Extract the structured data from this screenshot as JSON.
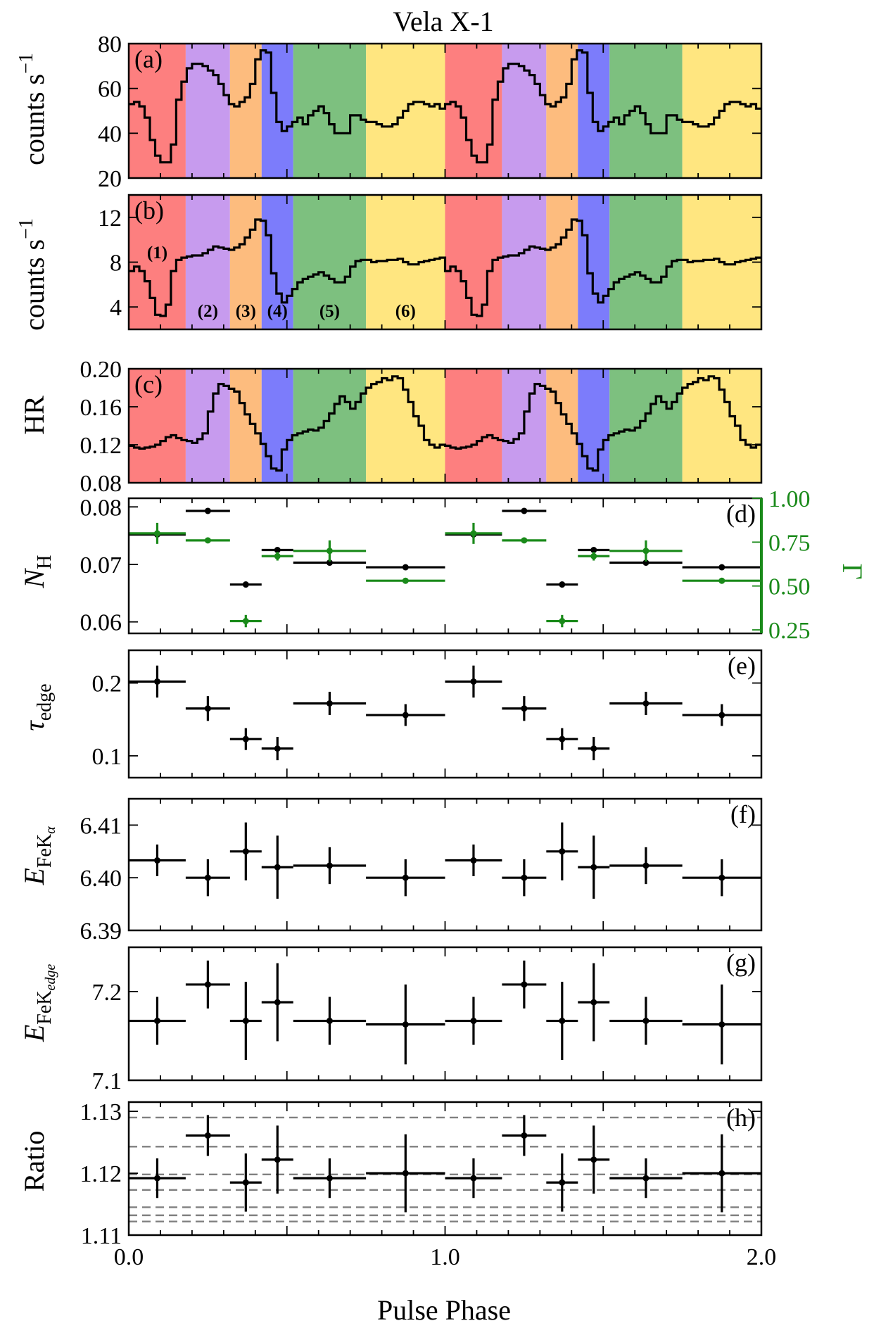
{
  "title": "Vela X-1",
  "xlabel": "Pulse Phase",
  "x_ticks": [
    "0.0",
    "1.0",
    "2.0"
  ],
  "xlim": [
    0,
    2
  ],
  "colors": {
    "regions": [
      "#fd7f7f",
      "#c79bee",
      "#fdbc7e",
      "#7c7cfb",
      "#7dc07f",
      "#ffe680"
    ],
    "green": "#1a8a1a",
    "black": "#000000",
    "gray": "#808080"
  },
  "region_edges": [
    0,
    0.18,
    0.32,
    0.42,
    0.52,
    0.75,
    1.0
  ],
  "region_labels": [
    "(1)",
    "(2)",
    "(3)",
    "(4)",
    "(5)",
    "(6)"
  ],
  "chart_data": [
    {
      "id": "a",
      "type": "line",
      "label": "(a)",
      "ylabel": "counts s⁻¹",
      "ylim": [
        20,
        80
      ],
      "yticks": [
        20,
        40,
        60,
        80
      ],
      "ytick_labels": [
        "20",
        "40",
        "60",
        "80"
      ],
      "step_values": [
        53,
        54,
        52,
        47,
        37,
        30,
        27,
        27,
        35,
        55,
        63,
        69,
        71,
        71,
        70,
        68,
        66,
        62,
        57,
        53,
        52,
        54,
        56,
        62,
        73,
        77,
        76,
        58,
        45,
        41,
        43,
        45,
        47,
        44,
        48,
        50,
        52,
        49,
        44,
        40,
        40,
        40,
        48,
        48,
        46,
        45,
        45,
        44,
        43,
        43,
        44,
        47,
        50,
        53,
        54,
        54,
        53,
        52,
        53,
        51
      ]
    },
    {
      "id": "b",
      "type": "line",
      "label": "(b)",
      "ylabel": "counts s⁻¹",
      "ylim": [
        2,
        14
      ],
      "yticks": [
        4,
        8,
        12
      ],
      "ytick_labels": [
        "4",
        "8",
        "12"
      ],
      "step_values": [
        7.2,
        7.6,
        7.2,
        6.3,
        4.8,
        3.3,
        3.2,
        4.2,
        7.2,
        8.2,
        8.4,
        8.5,
        8.6,
        8.6,
        8.8,
        9.1,
        9.4,
        9.3,
        9.2,
        9.1,
        9.3,
        9.6,
        10.2,
        10.9,
        11.8,
        11.7,
        10.4,
        7.0,
        5.2,
        4.4,
        5.0,
        5.6,
        6.2,
        6.5,
        6.7,
        6.9,
        7.1,
        6.8,
        6.5,
        6.2,
        6.2,
        6.7,
        7.6,
        8.1,
        8.2,
        8.2,
        8.0,
        8.1,
        8.1,
        8.2,
        8.2,
        8.3,
        8.0,
        7.8,
        7.8,
        8.0,
        8.1,
        8.2,
        8.3,
        8.4
      ]
    },
    {
      "id": "c",
      "type": "line",
      "label": "(c)",
      "ylabel": "HR",
      "ylim": [
        0.08,
        0.2
      ],
      "yticks": [
        0.08,
        0.12,
        0.16,
        0.2
      ],
      "ytick_labels": [
        "0.08",
        "0.12",
        "0.16",
        "0.20"
      ],
      "step_values": [
        0.119,
        0.117,
        0.116,
        0.117,
        0.118,
        0.12,
        0.124,
        0.128,
        0.13,
        0.127,
        0.125,
        0.124,
        0.122,
        0.126,
        0.132,
        0.155,
        0.174,
        0.184,
        0.182,
        0.179,
        0.176,
        0.164,
        0.152,
        0.142,
        0.132,
        0.121,
        0.108,
        0.095,
        0.093,
        0.115,
        0.125,
        0.13,
        0.132,
        0.134,
        0.136,
        0.135,
        0.138,
        0.145,
        0.153,
        0.163,
        0.171,
        0.165,
        0.158,
        0.165,
        0.174,
        0.18,
        0.184,
        0.186,
        0.19,
        0.188,
        0.192,
        0.19,
        0.178,
        0.165,
        0.15,
        0.14,
        0.125,
        0.12,
        0.117,
        0.12
      ]
    },
    {
      "id": "d",
      "type": "scatter",
      "label": "(d)",
      "ylabel": "N_H",
      "y2label": "Γ",
      "ylim": [
        0.058,
        0.0815
      ],
      "yticks": [
        0.06,
        0.07,
        0.08
      ],
      "ytick_labels": [
        "0.06",
        "0.07",
        "0.08"
      ],
      "y2lim": [
        0.23,
        1.0
      ],
      "y2ticks": [
        0.25,
        0.5,
        0.75,
        1.0
      ],
      "y2tick_labels": [
        "0.25",
        "0.50",
        "0.75",
        "1.00"
      ],
      "series": [
        {
          "name": "N_H",
          "axis": "left",
          "color": "#000000",
          "points": [
            {
              "x": 0.09,
              "xerr": 0.09,
              "y": 0.0752,
              "yerr": 0.0006
            },
            {
              "x": 0.25,
              "xerr": 0.07,
              "y": 0.0793,
              "yerr": 0.0005
            },
            {
              "x": 0.37,
              "xerr": 0.05,
              "y": 0.0665,
              "yerr": 0.0005
            },
            {
              "x": 0.47,
              "xerr": 0.05,
              "y": 0.0725,
              "yerr": 0.0004
            },
            {
              "x": 0.635,
              "xerr": 0.115,
              "y": 0.0703,
              "yerr": 0.0004
            },
            {
              "x": 0.875,
              "xerr": 0.125,
              "y": 0.0695,
              "yerr": 0.0004
            }
          ]
        },
        {
          "name": "Γ",
          "axis": "right",
          "color": "#1a8a1a",
          "points": [
            {
              "x": 0.09,
              "xerr": 0.09,
              "y": 0.8,
              "yerr": 0.06
            },
            {
              "x": 0.25,
              "xerr": 0.07,
              "y": 0.76,
              "yerr": 0.015
            },
            {
              "x": 0.37,
              "xerr": 0.05,
              "y": 0.3,
              "yerr": 0.035
            },
            {
              "x": 0.47,
              "xerr": 0.05,
              "y": 0.67,
              "yerr": 0.025
            },
            {
              "x": 0.635,
              "xerr": 0.115,
              "y": 0.7,
              "yerr": 0.06
            },
            {
              "x": 0.875,
              "xerr": 0.125,
              "y": 0.53,
              "yerr": 0.012
            }
          ]
        }
      ]
    },
    {
      "id": "e",
      "type": "scatter",
      "label": "(e)",
      "ylabel": "τ_edge",
      "ylim": [
        0.07,
        0.245
      ],
      "yticks": [
        0.1,
        0.2
      ],
      "ytick_labels": [
        "0.1",
        "0.2"
      ],
      "series": [
        {
          "name": "τ_edge",
          "axis": "left",
          "color": "#000000",
          "points": [
            {
              "x": 0.09,
              "xerr": 0.09,
              "y": 0.202,
              "yerr": 0.022
            },
            {
              "x": 0.25,
              "xerr": 0.07,
              "y": 0.165,
              "yerr": 0.017
            },
            {
              "x": 0.37,
              "xerr": 0.05,
              "y": 0.123,
              "yerr": 0.015
            },
            {
              "x": 0.47,
              "xerr": 0.05,
              "y": 0.11,
              "yerr": 0.016
            },
            {
              "x": 0.635,
              "xerr": 0.115,
              "y": 0.172,
              "yerr": 0.016
            },
            {
              "x": 0.875,
              "xerr": 0.125,
              "y": 0.156,
              "yerr": 0.015
            }
          ]
        }
      ]
    },
    {
      "id": "f",
      "type": "scatter",
      "label": "(f)",
      "ylabel": "E_FeKα",
      "ylim": [
        6.39,
        6.415
      ],
      "yticks": [
        6.39,
        6.4,
        6.41
      ],
      "ytick_labels": [
        "6.39",
        "6.40",
        "6.41"
      ],
      "series": [
        {
          "name": "E_FeKα",
          "axis": "left",
          "color": "#000000",
          "points": [
            {
              "x": 0.09,
              "xerr": 0.09,
              "y": 6.4033,
              "yerr": 0.003
            },
            {
              "x": 0.25,
              "xerr": 0.07,
              "y": 6.4,
              "yerr": 0.0035
            },
            {
              "x": 0.37,
              "xerr": 0.05,
              "y": 6.405,
              "yerr": 0.0055
            },
            {
              "x": 0.47,
              "xerr": 0.05,
              "y": 6.402,
              "yerr": 0.006
            },
            {
              "x": 0.635,
              "xerr": 0.115,
              "y": 6.4023,
              "yerr": 0.0035
            },
            {
              "x": 0.875,
              "xerr": 0.125,
              "y": 6.4,
              "yerr": 0.0035
            }
          ]
        }
      ]
    },
    {
      "id": "g",
      "type": "scatter",
      "label": "(g)",
      "ylabel": "E_FeKedge",
      "ylim": [
        7.1,
        7.25
      ],
      "yticks": [
        7.1,
        7.2
      ],
      "ytick_labels": [
        "7.1",
        "7.2"
      ],
      "series": [
        {
          "name": "E_FeKedge",
          "axis": "left",
          "color": "#000000",
          "points": [
            {
              "x": 0.09,
              "xerr": 0.09,
              "y": 7.167,
              "yerr": 0.027
            },
            {
              "x": 0.25,
              "xerr": 0.07,
              "y": 7.208,
              "yerr": 0.027
            },
            {
              "x": 0.37,
              "xerr": 0.05,
              "y": 7.167,
              "yerr": 0.044
            },
            {
              "x": 0.47,
              "xerr": 0.05,
              "y": 7.188,
              "yerr": 0.044
            },
            {
              "x": 0.635,
              "xerr": 0.115,
              "y": 7.167,
              "yerr": 0.027
            },
            {
              "x": 0.875,
              "xerr": 0.125,
              "y": 7.163,
              "yerr": 0.045
            }
          ]
        }
      ]
    },
    {
      "id": "h",
      "type": "scatter",
      "label": "(h)",
      "ylabel": "Ratio",
      "ylim": [
        1.11,
        1.1315
      ],
      "yticks": [
        1.11,
        1.12,
        1.13
      ],
      "ytick_labels": [
        "1.11",
        "1.12",
        "1.13"
      ],
      "hlines": [
        1.129,
        1.1243,
        1.1198,
        1.1173,
        1.1145,
        1.1132,
        1.1122
      ],
      "series": [
        {
          "name": "Ratio",
          "axis": "left",
          "color": "#000000",
          "points": [
            {
              "x": 0.09,
              "xerr": 0.09,
              "y": 1.1192,
              "yerr": 0.0032
            },
            {
              "x": 0.25,
              "xerr": 0.07,
              "y": 1.1261,
              "yerr": 0.0033
            },
            {
              "x": 0.37,
              "xerr": 0.05,
              "y": 1.1185,
              "yerr": 0.0047
            },
            {
              "x": 0.47,
              "xerr": 0.05,
              "y": 1.1222,
              "yerr": 0.0055
            },
            {
              "x": 0.635,
              "xerr": 0.115,
              "y": 1.1192,
              "yerr": 0.0032
            },
            {
              "x": 0.875,
              "xerr": 0.125,
              "y": 1.12,
              "yerr": 0.0063
            }
          ]
        }
      ]
    }
  ]
}
